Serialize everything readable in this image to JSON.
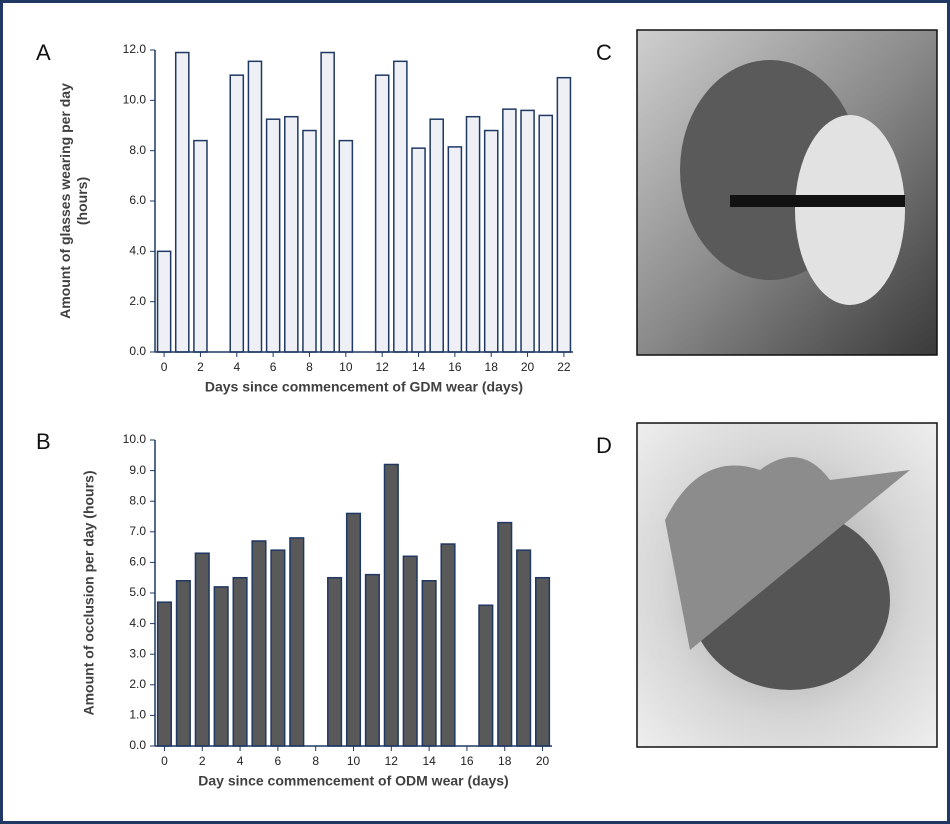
{
  "chart_data": [
    {
      "type": "bar",
      "panel_label": "A",
      "xlabel": "Days since commencement of GDM wear (days)",
      "ylabel": [
        "Amount of glasses wearing per day",
        "(hours)"
      ],
      "x": [
        0,
        1,
        2,
        3,
        4,
        5,
        6,
        7,
        8,
        9,
        10,
        11,
        12,
        13,
        14,
        15,
        16,
        17,
        18,
        19,
        20,
        21,
        22
      ],
      "values": [
        4.0,
        11.9,
        8.4,
        null,
        11.0,
        11.55,
        9.25,
        9.35,
        8.8,
        11.9,
        8.4,
        null,
        11.0,
        11.55,
        8.1,
        9.25,
        8.15,
        9.35,
        8.8,
        9.65,
        9.6,
        9.4,
        10.9
      ],
      "color": "#eef0f5",
      "edge_color": "#1f3864",
      "xlim": [
        -0.5,
        22.5
      ],
      "xticks": [
        0,
        2,
        4,
        6,
        8,
        10,
        12,
        14,
        16,
        18,
        20,
        22
      ],
      "ylim": [
        0,
        12
      ],
      "yticks": [
        {
          "value": 0,
          "label": "0.0"
        },
        {
          "value": 2,
          "label": "2.0"
        },
        {
          "value": 4,
          "label": "4.0"
        },
        {
          "value": 6,
          "label": "6.0"
        },
        {
          "value": 8,
          "label": "8.0"
        },
        {
          "value": 10,
          "label": "10.0"
        },
        {
          "value": 12,
          "label": "12.0"
        }
      ]
    },
    {
      "type": "bar",
      "panel_label": "B",
      "xlabel": "Day since commencement of ODM wear (days)",
      "ylabel": [
        "Amount of occlusion per day (hours)"
      ],
      "x": [
        0,
        1,
        2,
        3,
        4,
        5,
        6,
        7,
        8,
        9,
        10,
        11,
        12,
        13,
        14,
        15,
        16,
        17,
        18,
        19,
        20
      ],
      "values": [
        4.7,
        5.4,
        6.3,
        5.2,
        5.5,
        6.7,
        6.4,
        6.8,
        null,
        5.5,
        7.6,
        5.6,
        9.2,
        6.2,
        5.4,
        6.6,
        null,
        4.6,
        7.3,
        6.4,
        5.5
      ],
      "color": "#595959",
      "edge_color": "#1f3864",
      "xlim": [
        -0.5,
        20.5
      ],
      "xticks": [
        0,
        2,
        4,
        6,
        8,
        10,
        12,
        14,
        16,
        18,
        20
      ],
      "ylim": [
        0,
        10
      ],
      "yticks": [
        {
          "value": 0,
          "label": "0.0"
        },
        {
          "value": 1,
          "label": "1.0"
        },
        {
          "value": 2,
          "label": "2.0"
        },
        {
          "value": 3,
          "label": "3.0"
        },
        {
          "value": 4,
          "label": "4.0"
        },
        {
          "value": 5,
          "label": "5.0"
        },
        {
          "value": 6,
          "label": "6.0"
        },
        {
          "value": 7,
          "label": "7.0"
        },
        {
          "value": 8,
          "label": "8.0"
        },
        {
          "value": 9,
          "label": "9.0"
        },
        {
          "value": 10,
          "label": "10.0"
        }
      ]
    }
  ],
  "photos": [
    {
      "label": "C"
    },
    {
      "label": "D"
    }
  ]
}
